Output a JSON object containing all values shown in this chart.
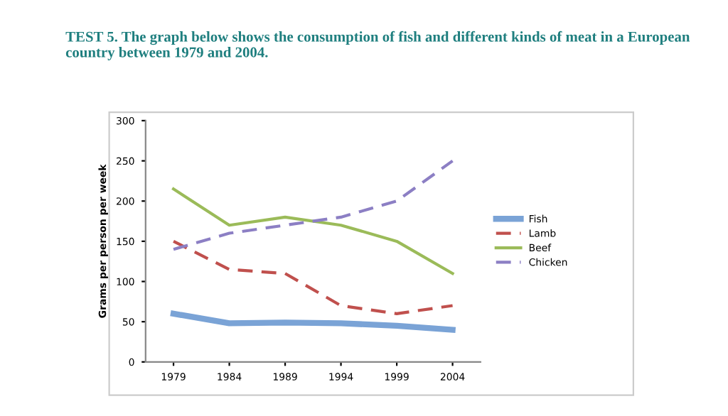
{
  "chart_data": {
    "type": "line",
    "title": "TEST 5. The graph below shows the consumption of fish and different kinds of meat in a European country between 1979 and 2004.",
    "ylabel": "Grams per person per week",
    "categories": [
      "1979",
      "1984",
      "1989",
      "1994",
      "1999",
      "2004"
    ],
    "series": [
      {
        "name": "Fish",
        "color": "#7aa3d6",
        "values": [
          60,
          48,
          49,
          48,
          45,
          40
        ],
        "line_style": "solid"
      },
      {
        "name": "Lamb",
        "color": "#c0504d",
        "values": [
          150,
          115,
          110,
          70,
          60,
          70
        ],
        "line_style": "dashed"
      },
      {
        "name": "Beef",
        "color": "#9bbb59",
        "values": [
          215,
          170,
          180,
          170,
          150,
          110
        ],
        "line_style": "solid"
      },
      {
        "name": "Chicken",
        "color": "#8c7fc4",
        "values": [
          140,
          160,
          170,
          180,
          200,
          250
        ],
        "line_style": "dashed"
      }
    ],
    "ylim": [
      0,
      300
    ],
    "yticks": [
      0,
      50,
      100,
      150,
      200,
      250,
      300
    ],
    "grid": false,
    "legend": "right",
    "marker": "none"
  }
}
